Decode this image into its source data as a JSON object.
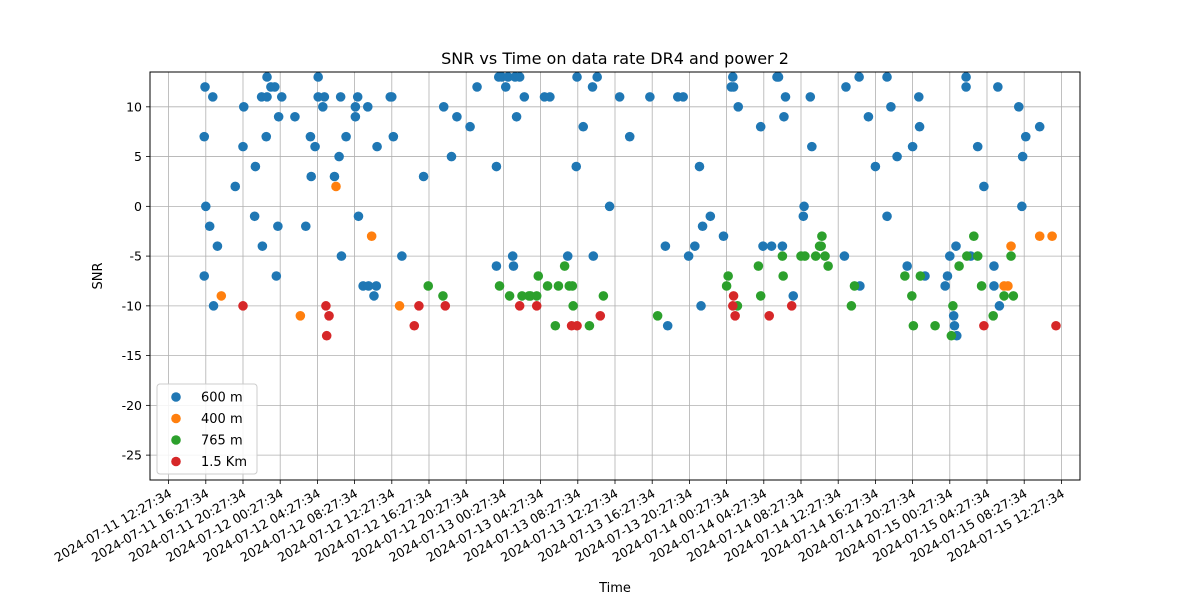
{
  "chart_data": {
    "type": "scatter",
    "title": "SNR vs Time on data rate DR4 and power 2",
    "xlabel": "Time",
    "ylabel": "SNR",
    "ylim": [
      -27.5,
      13.5
    ],
    "yticks": [
      10,
      5,
      0,
      -5,
      -10,
      -15,
      -20,
      -25
    ],
    "xlim": [
      "2024-07-11 10:27:34",
      "2024-07-15 14:27:34"
    ],
    "xticks": [
      "2024-07-11 12:27:34",
      "2024-07-11 16:27:34",
      "2024-07-11 20:27:34",
      "2024-07-12 00:27:34",
      "2024-07-12 04:27:34",
      "2024-07-12 08:27:34",
      "2024-07-12 12:27:34",
      "2024-07-12 16:27:34",
      "2024-07-12 20:27:34",
      "2024-07-13 00:27:34",
      "2024-07-13 04:27:34",
      "2024-07-13 08:27:34",
      "2024-07-13 12:27:34",
      "2024-07-13 16:27:34",
      "2024-07-13 20:27:34",
      "2024-07-14 00:27:34",
      "2024-07-14 04:27:34",
      "2024-07-14 08:27:34",
      "2024-07-14 12:27:34",
      "2024-07-14 16:27:34",
      "2024-07-14 20:27:34",
      "2024-07-15 00:27:34",
      "2024-07-15 04:27:34",
      "2024-07-15 08:27:34",
      "2024-07-15 12:27:34"
    ],
    "grid": true,
    "legend_position": "lower-left",
    "series": [
      {
        "name": "600 m",
        "color": "#1f77b4",
        "points": [
          [
            "2024-07-11 16:17",
            -7
          ],
          [
            "2024-07-11 16:17",
            7
          ],
          [
            "2024-07-11 16:22",
            12
          ],
          [
            "2024-07-11 16:27",
            0
          ],
          [
            "2024-07-11 16:52",
            -2
          ],
          [
            "2024-07-11 17:12",
            11
          ],
          [
            "2024-07-11 17:17",
            -10
          ],
          [
            "2024-07-11 17:42",
            -4
          ],
          [
            "2024-07-11 19:37",
            2
          ],
          [
            "2024-07-11 20:27",
            6
          ],
          [
            "2024-07-11 20:32",
            10
          ],
          [
            "2024-07-11 21:42",
            -1
          ],
          [
            "2024-07-11 21:47",
            4
          ],
          [
            "2024-07-11 22:27",
            11
          ],
          [
            "2024-07-11 22:32",
            -4
          ],
          [
            "2024-07-11 22:57",
            7
          ],
          [
            "2024-07-11 23:02",
            13
          ],
          [
            "2024-07-11 23:02",
            11
          ],
          [
            "2024-07-11 23:27",
            12
          ],
          [
            "2024-07-11 23:52",
            12
          ],
          [
            "2024-07-12 00:02",
            -7
          ],
          [
            "2024-07-12 00:12",
            -2
          ],
          [
            "2024-07-12 00:17",
            9
          ],
          [
            "2024-07-12 00:37",
            11
          ],
          [
            "2024-07-12 02:02",
            9
          ],
          [
            "2024-07-12 03:12",
            -2
          ],
          [
            "2024-07-12 03:42",
            7
          ],
          [
            "2024-07-12 03:47",
            3
          ],
          [
            "2024-07-12 04:12",
            6
          ],
          [
            "2024-07-12 04:32",
            13
          ],
          [
            "2024-07-12 04:32",
            11
          ],
          [
            "2024-07-12 05:02",
            10
          ],
          [
            "2024-07-12 05:12",
            11
          ],
          [
            "2024-07-12 06:17",
            3
          ],
          [
            "2024-07-12 06:47",
            5
          ],
          [
            "2024-07-12 06:57",
            11
          ],
          [
            "2024-07-12 07:02",
            -5
          ],
          [
            "2024-07-12 07:32",
            7
          ],
          [
            "2024-07-12 08:32",
            10
          ],
          [
            "2024-07-12 08:32",
            9
          ],
          [
            "2024-07-12 08:47",
            11
          ],
          [
            "2024-07-12 08:52",
            -1
          ],
          [
            "2024-07-12 09:22",
            -8
          ],
          [
            "2024-07-12 09:52",
            10
          ],
          [
            "2024-07-12 09:57",
            -8
          ],
          [
            "2024-07-12 10:32",
            -9
          ],
          [
            "2024-07-12 10:47",
            -8
          ],
          [
            "2024-07-12 10:52",
            6
          ],
          [
            "2024-07-12 12:17",
            11
          ],
          [
            "2024-07-12 12:27",
            11
          ],
          [
            "2024-07-12 12:37",
            7
          ],
          [
            "2024-07-12 13:32",
            -5
          ],
          [
            "2024-07-12 15:52",
            3
          ],
          [
            "2024-07-12 18:02",
            10
          ],
          [
            "2024-07-12 18:52",
            5
          ],
          [
            "2024-07-12 19:27",
            9
          ],
          [
            "2024-07-12 20:52",
            8
          ],
          [
            "2024-07-12 21:37",
            12
          ],
          [
            "2024-07-12 23:42",
            4
          ],
          [
            "2024-07-12 23:42",
            -6
          ],
          [
            "2024-07-12 23:57",
            13
          ],
          [
            "2024-07-13 00:17",
            13
          ],
          [
            "2024-07-13 00:42",
            12
          ],
          [
            "2024-07-13 00:57",
            13
          ],
          [
            "2024-07-13 01:27",
            -5
          ],
          [
            "2024-07-13 01:32",
            -6
          ],
          [
            "2024-07-13 01:42",
            13
          ],
          [
            "2024-07-13 01:52",
            9
          ],
          [
            "2024-07-13 02:12",
            13
          ],
          [
            "2024-07-13 02:42",
            11
          ],
          [
            "2024-07-13 04:52",
            11
          ],
          [
            "2024-07-13 05:27",
            11
          ],
          [
            "2024-07-13 07:22",
            -5
          ],
          [
            "2024-07-13 08:17",
            4
          ],
          [
            "2024-07-13 08:22",
            13
          ],
          [
            "2024-07-13 09:02",
            8
          ],
          [
            "2024-07-13 10:02",
            12
          ],
          [
            "2024-07-13 10:07",
            -5
          ],
          [
            "2024-07-13 10:32",
            13
          ],
          [
            "2024-07-13 11:52",
            0
          ],
          [
            "2024-07-13 12:57",
            11
          ],
          [
            "2024-07-13 14:02",
            7
          ],
          [
            "2024-07-13 16:12",
            11
          ],
          [
            "2024-07-13 17:52",
            -4
          ],
          [
            "2024-07-13 18:07",
            -12
          ],
          [
            "2024-07-13 19:12",
            11
          ],
          [
            "2024-07-13 19:47",
            11
          ],
          [
            "2024-07-13 20:22",
            -5
          ],
          [
            "2024-07-13 21:02",
            -4
          ],
          [
            "2024-07-13 21:32",
            4
          ],
          [
            "2024-07-13 21:42",
            -10
          ],
          [
            "2024-07-13 21:52",
            -2
          ],
          [
            "2024-07-13 22:42",
            -1
          ],
          [
            "2024-07-14 00:07",
            -3
          ],
          [
            "2024-07-14 00:57",
            12
          ],
          [
            "2024-07-14 01:07",
            13
          ],
          [
            "2024-07-14 01:12",
            12
          ],
          [
            "2024-07-14 01:42",
            10
          ],
          [
            "2024-07-14 04:07",
            8
          ],
          [
            "2024-07-14 04:22",
            -4
          ],
          [
            "2024-07-14 05:17",
            -4
          ],
          [
            "2024-07-14 05:52",
            13
          ],
          [
            "2024-07-14 06:02",
            13
          ],
          [
            "2024-07-14 06:27",
            -4
          ],
          [
            "2024-07-14 06:37",
            9
          ],
          [
            "2024-07-14 06:47",
            11
          ],
          [
            "2024-07-14 07:37",
            -9
          ],
          [
            "2024-07-14 08:42",
            -1
          ],
          [
            "2024-07-14 08:47",
            0
          ],
          [
            "2024-07-14 09:27",
            11
          ],
          [
            "2024-07-14 09:37",
            6
          ],
          [
            "2024-07-14 13:07",
            -5
          ],
          [
            "2024-07-14 13:17",
            12
          ],
          [
            "2024-07-14 14:42",
            13
          ],
          [
            "2024-07-14 14:47",
            -8
          ],
          [
            "2024-07-14 15:42",
            9
          ],
          [
            "2024-07-14 16:27",
            4
          ],
          [
            "2024-07-14 17:42",
            13
          ],
          [
            "2024-07-14 17:42",
            -1
          ],
          [
            "2024-07-14 18:07",
            10
          ],
          [
            "2024-07-14 18:47",
            5
          ],
          [
            "2024-07-14 19:52",
            -6
          ],
          [
            "2024-07-14 20:27",
            6
          ],
          [
            "2024-07-14 21:07",
            11
          ],
          [
            "2024-07-14 21:12",
            8
          ],
          [
            "2024-07-14 21:47",
            -7
          ],
          [
            "2024-07-14 23:57",
            -8
          ],
          [
            "2024-07-15 00:12",
            -7
          ],
          [
            "2024-07-15 00:27",
            -5
          ],
          [
            "2024-07-15 00:52",
            -11
          ],
          [
            "2024-07-15 00:57",
            -12
          ],
          [
            "2024-07-15 01:07",
            -4
          ],
          [
            "2024-07-15 01:12",
            -13
          ],
          [
            "2024-07-15 02:12",
            13
          ],
          [
            "2024-07-15 02:12",
            12
          ],
          [
            "2024-07-15 02:42",
            -5
          ],
          [
            "2024-07-15 03:27",
            6
          ],
          [
            "2024-07-15 04:07",
            2
          ],
          [
            "2024-07-15 05:12",
            -6
          ],
          [
            "2024-07-15 05:12",
            -8
          ],
          [
            "2024-07-15 05:37",
            12
          ],
          [
            "2024-07-15 05:47",
            -10
          ],
          [
            "2024-07-15 07:52",
            10
          ],
          [
            "2024-07-15 08:12",
            0
          ],
          [
            "2024-07-15 08:17",
            5
          ],
          [
            "2024-07-15 08:37",
            7
          ],
          [
            "2024-07-15 10:07",
            8
          ]
        ]
      },
      {
        "name": "400 m",
        "color": "#ff7f0e",
        "points": [
          [
            "2024-07-11 18:07",
            -9
          ],
          [
            "2024-07-12 02:37",
            -11
          ],
          [
            "2024-07-12 06:27",
            2
          ],
          [
            "2024-07-12 10:17",
            -3
          ],
          [
            "2024-07-12 13:17",
            -10
          ],
          [
            "2024-07-15 06:17",
            -8
          ],
          [
            "2024-07-15 06:42",
            -8
          ],
          [
            "2024-07-15 07:02",
            -4
          ],
          [
            "2024-07-15 10:07",
            -3
          ],
          [
            "2024-07-15 11:27",
            -3
          ]
        ]
      },
      {
        "name": "765 m",
        "color": "#2ca02c",
        "points": [
          [
            "2024-07-12 16:22",
            -8
          ],
          [
            "2024-07-12 17:57",
            -9
          ],
          [
            "2024-07-13 00:02",
            -8
          ],
          [
            "2024-07-13 01:07",
            -9
          ],
          [
            "2024-07-13 02:27",
            -9
          ],
          [
            "2024-07-13 03:12",
            -9
          ],
          [
            "2024-07-13 03:22",
            -9
          ],
          [
            "2024-07-13 04:02",
            -9
          ],
          [
            "2024-07-13 04:12",
            -7
          ],
          [
            "2024-07-13 05:12",
            -8
          ],
          [
            "2024-07-13 06:02",
            -12
          ],
          [
            "2024-07-13 06:22",
            -8
          ],
          [
            "2024-07-13 07:02",
            -6
          ],
          [
            "2024-07-13 07:32",
            -8
          ],
          [
            "2024-07-13 07:52",
            -8
          ],
          [
            "2024-07-13 07:57",
            -10
          ],
          [
            "2024-07-13 09:42",
            -12
          ],
          [
            "2024-07-13 11:12",
            -9
          ],
          [
            "2024-07-13 17:02",
            -11
          ],
          [
            "2024-07-14 00:27",
            -8
          ],
          [
            "2024-07-14 00:37",
            -7
          ],
          [
            "2024-07-14 01:37",
            -10
          ],
          [
            "2024-07-14 03:52",
            -6
          ],
          [
            "2024-07-14 04:07",
            -9
          ],
          [
            "2024-07-14 06:27",
            -5
          ],
          [
            "2024-07-14 06:32",
            -7
          ],
          [
            "2024-07-14 08:27",
            -5
          ],
          [
            "2024-07-14 08:52",
            -5
          ],
          [
            "2024-07-14 10:02",
            -5
          ],
          [
            "2024-07-14 10:27",
            -4
          ],
          [
            "2024-07-14 10:37",
            -4
          ],
          [
            "2024-07-14 10:42",
            -3
          ],
          [
            "2024-07-14 11:02",
            -5
          ],
          [
            "2024-07-14 11:22",
            -6
          ],
          [
            "2024-07-14 13:52",
            -10
          ],
          [
            "2024-07-14 14:12",
            -8
          ],
          [
            "2024-07-14 19:37",
            -7
          ],
          [
            "2024-07-14 20:22",
            -9
          ],
          [
            "2024-07-14 20:32",
            -12
          ],
          [
            "2024-07-14 21:17",
            -7
          ],
          [
            "2024-07-14 22:52",
            -12
          ],
          [
            "2024-07-15 00:37",
            -13
          ],
          [
            "2024-07-15 00:47",
            -10
          ],
          [
            "2024-07-15 01:27",
            -6
          ],
          [
            "2024-07-15 02:17",
            -5
          ],
          [
            "2024-07-15 03:02",
            -3
          ],
          [
            "2024-07-15 03:27",
            -5
          ],
          [
            "2024-07-15 03:52",
            -8
          ],
          [
            "2024-07-15 05:07",
            -11
          ],
          [
            "2024-07-15 06:17",
            -9
          ],
          [
            "2024-07-15 07:02",
            -5
          ],
          [
            "2024-07-15 07:17",
            -9
          ]
        ]
      },
      {
        "name": "1.5 Km",
        "color": "#d62728",
        "points": [
          [
            "2024-07-11 20:27",
            -10
          ],
          [
            "2024-07-12 05:22",
            -10
          ],
          [
            "2024-07-12 05:27",
            -13
          ],
          [
            "2024-07-12 05:42",
            -11
          ],
          [
            "2024-07-12 14:52",
            -12
          ],
          [
            "2024-07-12 15:22",
            -10
          ],
          [
            "2024-07-12 18:12",
            -10
          ],
          [
            "2024-07-13 02:12",
            -10
          ],
          [
            "2024-07-13 04:02",
            -10
          ],
          [
            "2024-07-13 07:47",
            -12
          ],
          [
            "2024-07-13 08:22",
            -12
          ],
          [
            "2024-07-13 10:52",
            -11
          ],
          [
            "2024-07-14 01:07",
            -10
          ],
          [
            "2024-07-14 01:12",
            -9
          ],
          [
            "2024-07-14 01:22",
            -11
          ],
          [
            "2024-07-14 05:02",
            -11
          ],
          [
            "2024-07-14 07:27",
            -10
          ],
          [
            "2024-07-15 04:07",
            -12
          ],
          [
            "2024-07-15 11:52",
            -12
          ]
        ]
      }
    ]
  }
}
